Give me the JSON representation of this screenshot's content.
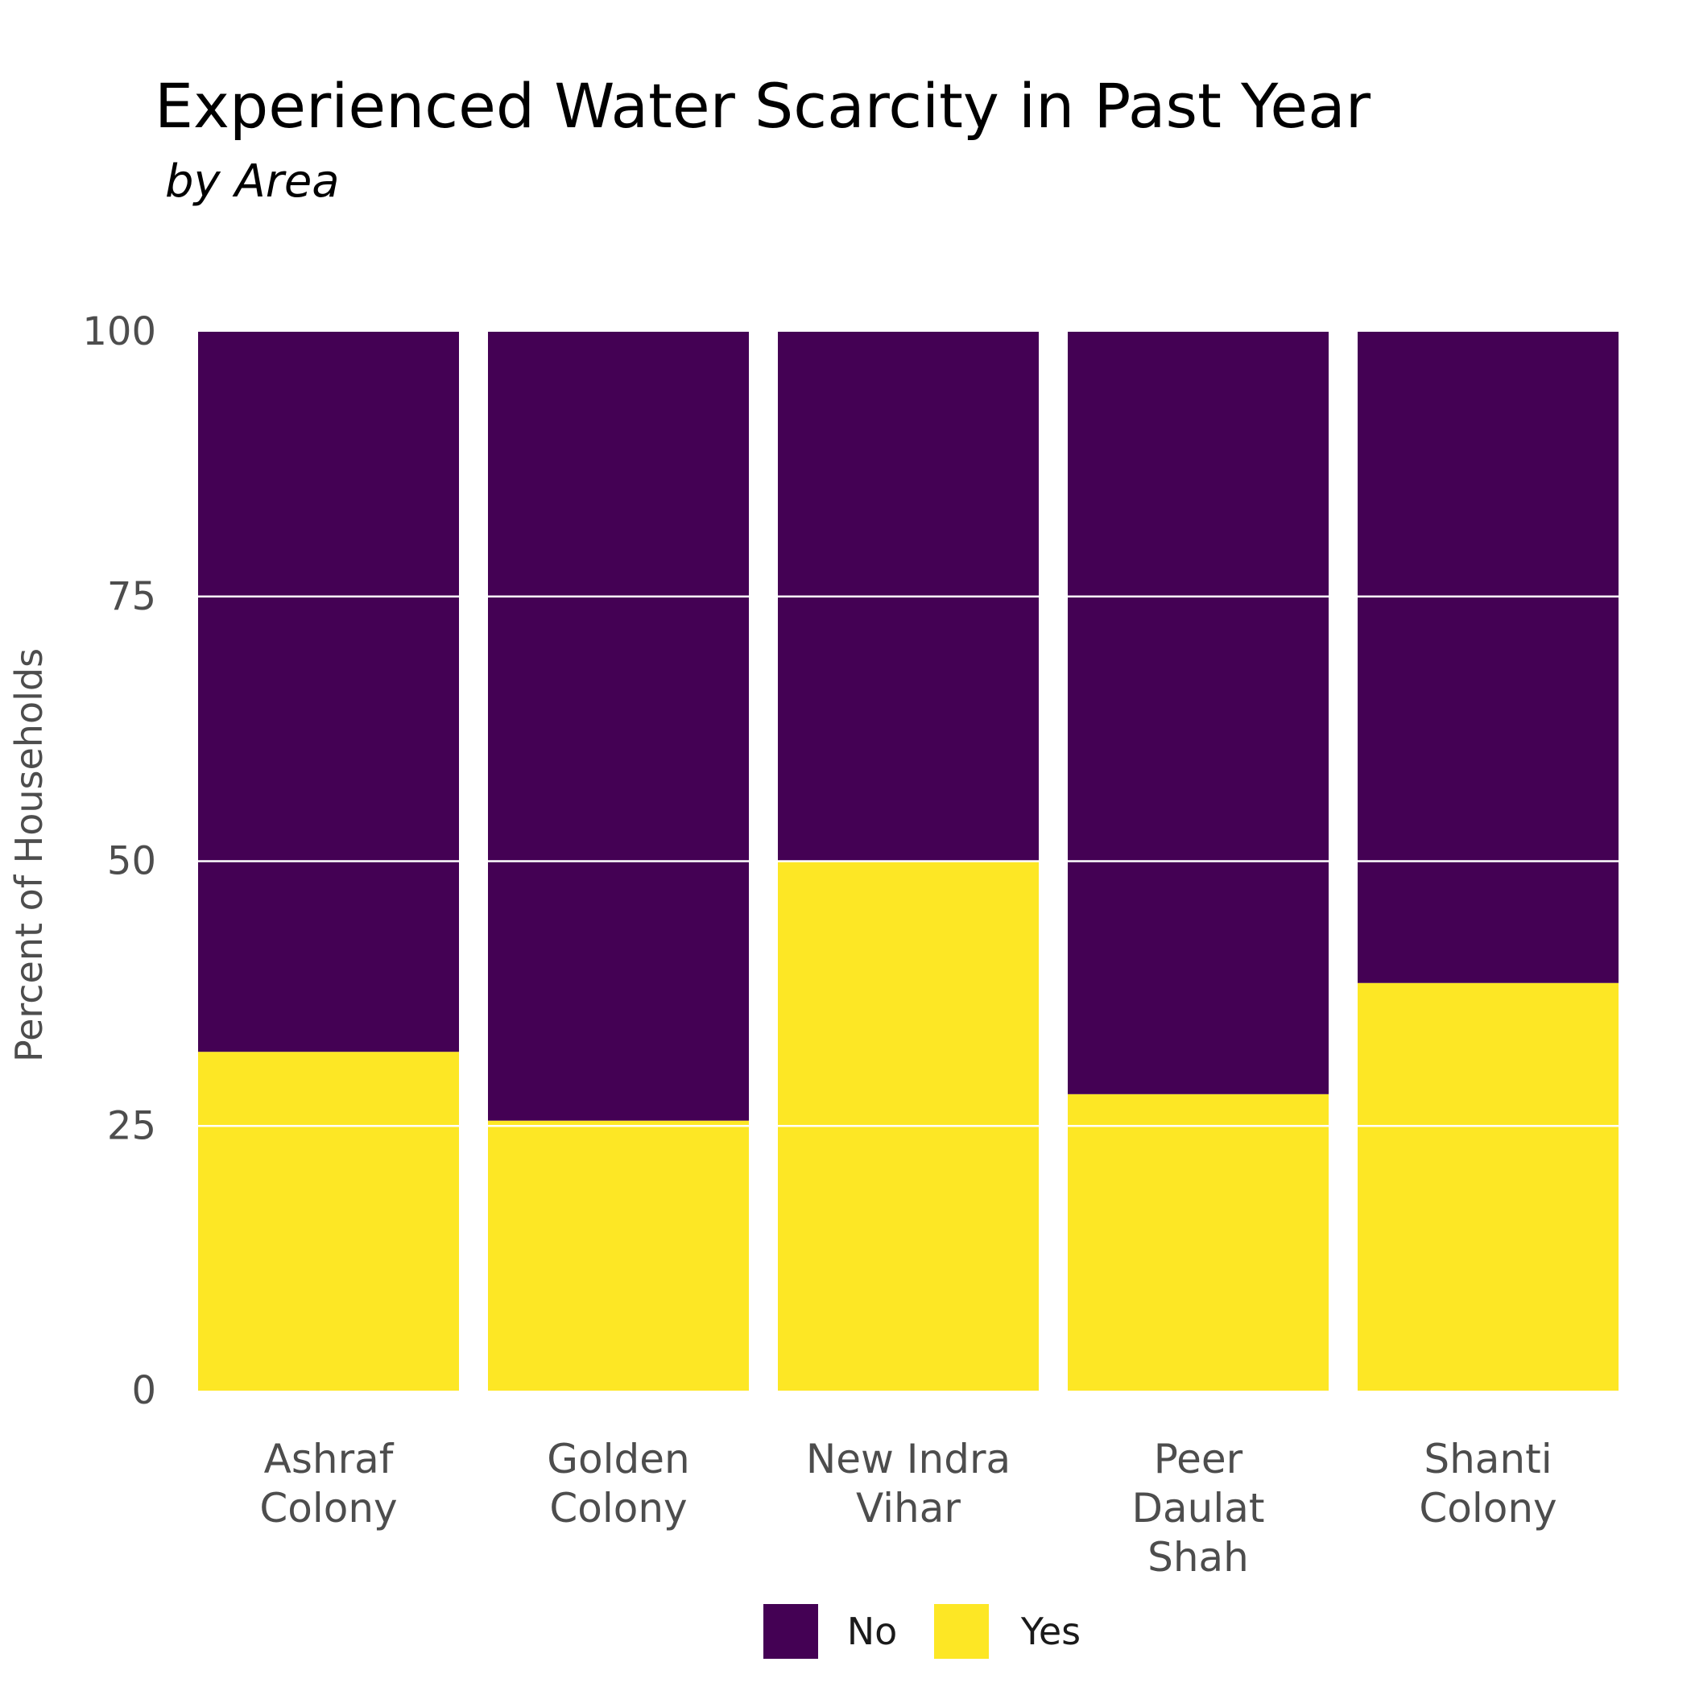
{
  "chart_data": {
    "type": "bar",
    "stacked": true,
    "title": "Experienced Water Scarcity in Past Year",
    "subtitle": "by Area",
    "xlabel": "",
    "ylabel": "Percent of Households",
    "ylim": [
      0,
      100
    ],
    "yticks": [
      "0",
      "25",
      "50",
      "75",
      "100"
    ],
    "grid": true,
    "legend_position": "bottom",
    "categories": [
      [
        "Ashraf",
        "Colony"
      ],
      [
        "Golden",
        "Colony"
      ],
      [
        "New Indra",
        "Vihar"
      ],
      [
        "Peer",
        "Daulat",
        "Shah"
      ],
      [
        "Shanti",
        "Colony"
      ]
    ],
    "series": [
      {
        "name": "No",
        "color": "#440154",
        "values": [
          68,
          74.5,
          50,
          72,
          61.5
        ]
      },
      {
        "name": "Yes",
        "color": "#FDE725",
        "values": [
          32,
          25.5,
          50,
          28,
          38.5
        ]
      }
    ]
  }
}
